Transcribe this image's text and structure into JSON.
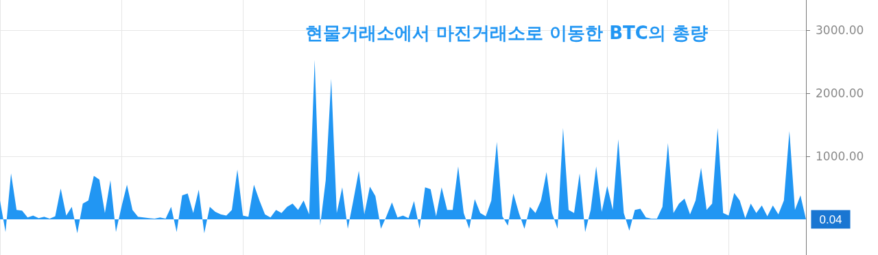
{
  "chart_data": {
    "type": "area",
    "title": "현물거래소에서 마진거래소로 이동한 BTC의 총량",
    "categories": [
      null,
      null,
      null,
      null,
      null,
      null,
      null,
      null,
      null,
      null,
      null,
      null,
      null,
      null,
      null,
      null,
      null,
      null,
      null,
      null,
      null,
      null,
      null,
      null,
      null,
      null,
      null,
      null,
      null,
      null,
      null,
      null,
      null,
      null,
      null,
      null,
      null,
      null,
      null,
      null,
      null,
      null,
      null,
      null,
      null,
      null,
      null,
      null,
      null,
      null,
      null,
      null,
      null,
      null,
      null,
      null,
      null,
      null,
      null,
      null,
      null,
      null,
      null,
      null,
      null,
      null,
      null,
      null,
      null,
      null,
      null,
      null,
      null,
      null,
      null,
      null,
      null,
      null,
      null,
      null,
      null,
      null,
      null,
      null,
      null,
      null,
      null,
      null,
      null,
      null,
      null,
      null,
      null,
      null,
      null,
      null,
      null,
      null,
      null,
      null,
      null,
      null,
      null,
      null,
      null,
      null,
      null,
      null,
      null,
      null,
      null,
      null,
      null,
      null,
      null,
      null,
      null,
      null,
      null,
      null,
      null,
      null,
      null,
      null,
      null,
      null,
      null,
      null,
      null,
      null,
      null,
      null,
      null,
      null,
      null,
      null,
      null,
      null,
      null,
      null,
      null,
      null,
      null,
      null,
      null,
      null,
      null
    ],
    "series": [
      {
        "color": "#2196f3",
        "values": [
          300,
          -200,
          730,
          150,
          140,
          30,
          60,
          20,
          40,
          10,
          50,
          490,
          60,
          200,
          -220,
          250,
          300,
          690,
          630,
          100,
          620,
          -200,
          200,
          550,
          150,
          40,
          30,
          20,
          10,
          30,
          10,
          200,
          -200,
          380,
          410,
          100,
          470,
          -220,
          200,
          120,
          80,
          60,
          150,
          790,
          60,
          40,
          550,
          300,
          80,
          30,
          150,
          100,
          200,
          250,
          150,
          300,
          80,
          2530,
          -100,
          620,
          2230,
          100,
          510,
          -150,
          300,
          770,
          80,
          520,
          370,
          -150,
          50,
          270,
          30,
          60,
          20,
          290,
          -150,
          510,
          480,
          50,
          510,
          150,
          150,
          840,
          100,
          -150,
          320,
          100,
          50,
          300,
          1230,
          50,
          -100,
          410,
          100,
          -150,
          200,
          100,
          300,
          750,
          100,
          -150,
          1450,
          150,
          100,
          730,
          -200,
          150,
          840,
          120,
          530,
          150,
          1270,
          100,
          -180,
          150,
          170,
          30,
          10,
          10,
          200,
          1210,
          100,
          250,
          330,
          80,
          300,
          820,
          150,
          250,
          1450,
          100,
          60,
          420,
          300,
          20,
          250,
          100,
          220,
          50,
          220,
          80,
          300,
          1400,
          150,
          380,
          0.04
        ]
      }
    ],
    "ylim": [
      -565,
      3480
    ],
    "yticks": [
      {
        "value": 1000,
        "label": "1000.00"
      },
      {
        "value": 2000,
        "label": "2000.00"
      },
      {
        "value": 3000,
        "label": "3000.00"
      }
    ],
    "grid": true,
    "tick_labels": "y",
    "annotations": [
      "0.04"
    ]
  }
}
